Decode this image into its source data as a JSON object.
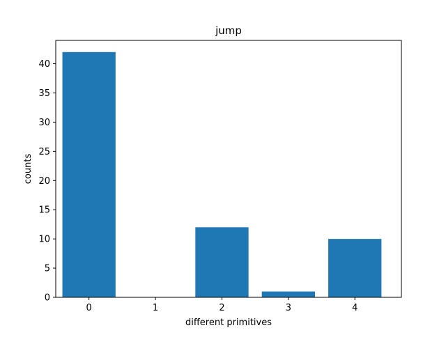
{
  "chart_data": {
    "type": "bar",
    "title": "jump",
    "xlabel": "different primitives",
    "ylabel": "counts",
    "categories": [
      "0",
      "1",
      "2",
      "3",
      "4"
    ],
    "values": [
      42,
      0,
      12,
      1,
      10
    ],
    "xlim": [
      -0.5,
      4.7
    ],
    "ylim": [
      0,
      44
    ],
    "yticks": [
      0,
      5,
      10,
      15,
      20,
      25,
      30,
      35,
      40
    ],
    "grid": false,
    "bar_color": "#1f77b4"
  }
}
